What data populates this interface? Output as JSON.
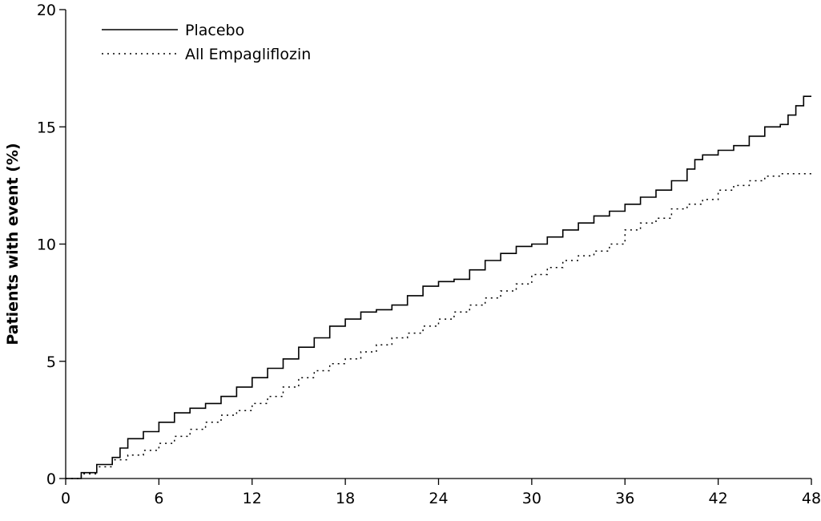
{
  "chart_data": {
    "type": "line",
    "title": "",
    "xlabel": "",
    "ylabel": "Patients with event (%)",
    "xlim": [
      0,
      48
    ],
    "ylim": [
      0,
      20
    ],
    "xticks": [
      0,
      6,
      12,
      18,
      24,
      30,
      36,
      42,
      48
    ],
    "yticks": [
      0,
      5,
      10,
      15,
      20
    ],
    "grid": false,
    "legend": {
      "position": "top-left"
    },
    "series": [
      {
        "name": "Placebo",
        "style": "solid",
        "step": true,
        "color": "#000000",
        "x": [
          0,
          1,
          2,
          3,
          3.5,
          4,
          5,
          6,
          7,
          8,
          9,
          10,
          11,
          12,
          13,
          14,
          15,
          16,
          17,
          18,
          19,
          20,
          21,
          22,
          23,
          24,
          25,
          26,
          27,
          28,
          29,
          30,
          31,
          32,
          33,
          34,
          35,
          36,
          37,
          38,
          39,
          40,
          40.5,
          41,
          42,
          43,
          44,
          45,
          46,
          46.5,
          47,
          47.5,
          48
        ],
        "y": [
          0,
          0.25,
          0.6,
          0.9,
          1.3,
          1.7,
          2.0,
          2.4,
          2.8,
          3.0,
          3.2,
          3.5,
          3.9,
          4.3,
          4.7,
          5.1,
          5.6,
          6.0,
          6.5,
          6.8,
          7.1,
          7.2,
          7.4,
          7.8,
          8.2,
          8.4,
          8.5,
          8.9,
          9.3,
          9.6,
          9.9,
          10.0,
          10.3,
          10.6,
          10.9,
          11.2,
          11.4,
          11.7,
          12.0,
          12.3,
          12.7,
          13.2,
          13.6,
          13.8,
          14.0,
          14.2,
          14.6,
          15.0,
          15.1,
          15.5,
          15.9,
          16.3,
          16.3
        ]
      },
      {
        "name": "All Empagliflozin",
        "style": "dotted",
        "step": true,
        "color": "#000000",
        "x": [
          0,
          1,
          2,
          3,
          4,
          5,
          6,
          7,
          8,
          9,
          10,
          11,
          12,
          13,
          14,
          15,
          16,
          17,
          18,
          19,
          20,
          21,
          22,
          23,
          24,
          25,
          26,
          27,
          28,
          29,
          30,
          31,
          32,
          33,
          34,
          35,
          36,
          37,
          38,
          39,
          40,
          41,
          42,
          43,
          44,
          45,
          46,
          47,
          48
        ],
        "y": [
          0,
          0.2,
          0.5,
          0.8,
          1.0,
          1.2,
          1.5,
          1.8,
          2.1,
          2.4,
          2.7,
          2.9,
          3.2,
          3.5,
          3.9,
          4.3,
          4.6,
          4.9,
          5.1,
          5.4,
          5.7,
          6.0,
          6.2,
          6.5,
          6.8,
          7.1,
          7.4,
          7.7,
          8.0,
          8.3,
          8.7,
          9.0,
          9.3,
          9.5,
          9.7,
          10.0,
          10.6,
          10.9,
          11.1,
          11.5,
          11.7,
          11.9,
          12.3,
          12.5,
          12.7,
          12.9,
          13.0,
          13.0,
          13.0
        ]
      }
    ]
  }
}
